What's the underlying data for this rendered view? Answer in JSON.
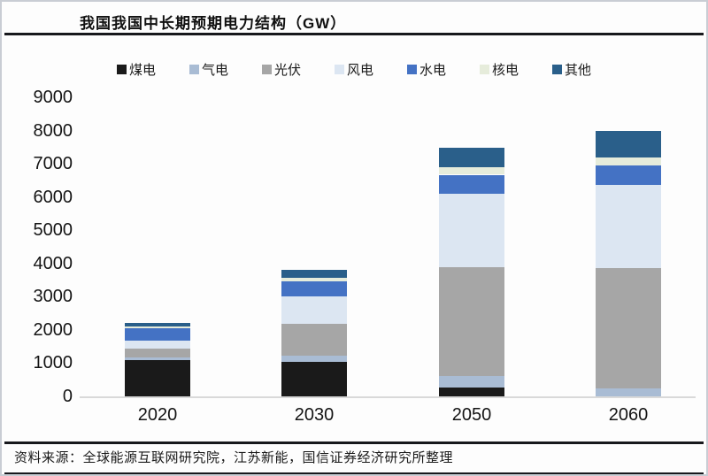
{
  "title": "我国我国中长期预期电力结构（GW）",
  "source_note": "资料来源：全球能源互联网研究院，江苏新能，国信证券经济研究所整理",
  "chart_data": {
    "type": "bar",
    "stacked": true,
    "title": "我国我国中长期预期电力结构（GW）",
    "xlabel": "",
    "ylabel": "",
    "ylim": [
      0,
      9000
    ],
    "yticks": [
      0,
      1000,
      2000,
      3000,
      4000,
      5000,
      6000,
      7000,
      8000,
      9000
    ],
    "grid": false,
    "legend_position": "top",
    "categories": [
      "2020",
      "2030",
      "2050",
      "2060"
    ],
    "series": [
      {
        "name": "煤电",
        "key": "coal",
        "color": "#1a1a1a",
        "values": [
          1080,
          1050,
          270,
          0
        ]
      },
      {
        "name": "气电",
        "key": "gas",
        "color": "#a9bcd4",
        "values": [
          100,
          180,
          350,
          250
        ]
      },
      {
        "name": "光伏",
        "key": "solar",
        "color": "#a6a6a6",
        "values": [
          250,
          960,
          3270,
          3620
        ]
      },
      {
        "name": "风电",
        "key": "wind",
        "color": "#dce6f2",
        "values": [
          240,
          820,
          2200,
          2490
        ]
      },
      {
        "name": "水电",
        "key": "hydro",
        "color": "#4472c4",
        "values": [
          380,
          460,
          580,
          580
        ]
      },
      {
        "name": "核电",
        "key": "nuclear",
        "color": "#e6ecdb",
        "values": [
          50,
          100,
          220,
          260
        ]
      },
      {
        "name": "其他",
        "key": "other",
        "color": "#2a5f8a",
        "values": [
          110,
          230,
          580,
          800
        ]
      }
    ],
    "category_totals": [
      2210,
      3800,
      7470,
      8000
    ]
  }
}
